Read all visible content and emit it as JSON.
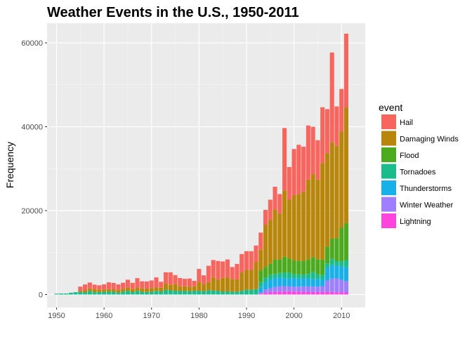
{
  "chart_data": {
    "type": "bar",
    "stacked": true,
    "title": "Weather Events in the U.S., 1950-2011",
    "xlabel": "",
    "ylabel": "Frequency",
    "xlim": [
      1948,
      2015
    ],
    "ylim": [
      -3100,
      64700
    ],
    "x_ticks": [
      1950,
      1960,
      1970,
      1980,
      1990,
      2000,
      2010
    ],
    "x_tick_labels": [
      "1950",
      "1960",
      "1970",
      "1980",
      "1990",
      "2000",
      "2010"
    ],
    "y_ticks": [
      0,
      20000,
      40000,
      60000
    ],
    "y_tick_labels": [
      "0",
      "20000",
      "40000",
      "60000"
    ],
    "grid": true,
    "legend": {
      "title": "event",
      "position": "right"
    },
    "x": [
      1950,
      1951,
      1952,
      1953,
      1954,
      1955,
      1956,
      1957,
      1958,
      1959,
      1960,
      1961,
      1962,
      1963,
      1964,
      1965,
      1966,
      1967,
      1968,
      1969,
      1970,
      1971,
      1972,
      1973,
      1974,
      1975,
      1976,
      1977,
      1978,
      1979,
      1980,
      1981,
      1982,
      1983,
      1984,
      1985,
      1986,
      1987,
      1988,
      1989,
      1990,
      1991,
      1992,
      1993,
      1994,
      1995,
      1996,
      1997,
      1998,
      1999,
      2000,
      2001,
      2002,
      2003,
      2004,
      2005,
      2006,
      2007,
      2008,
      2009,
      2010,
      2011
    ],
    "series": [
      {
        "name": "Lightning",
        "color": "#FF44DD",
        "values": [
          0,
          0,
          0,
          0,
          0,
          0,
          0,
          0,
          0,
          0,
          0,
          0,
          0,
          0,
          0,
          0,
          0,
          0,
          0,
          0,
          0,
          0,
          0,
          0,
          0,
          0,
          0,
          0,
          0,
          0,
          0,
          0,
          0,
          0,
          0,
          0,
          0,
          0,
          0,
          0,
          0,
          0,
          0,
          200,
          400,
          500,
          600,
          700,
          700,
          800,
          700,
          700,
          650,
          650,
          600,
          600,
          600,
          650,
          600,
          550,
          500,
          500
        ]
      },
      {
        "name": "Winter Weather",
        "color": "#9F7FFF",
        "values": [
          0,
          0,
          0,
          0,
          0,
          0,
          0,
          0,
          0,
          0,
          0,
          0,
          0,
          0,
          0,
          0,
          0,
          0,
          0,
          0,
          0,
          0,
          0,
          0,
          0,
          0,
          0,
          0,
          0,
          0,
          0,
          0,
          0,
          0,
          0,
          0,
          0,
          0,
          0,
          0,
          0,
          0,
          0,
          300,
          800,
          1000,
          1200,
          1300,
          1300,
          1200,
          1200,
          1200,
          1300,
          1300,
          1300,
          1300,
          1400,
          2700,
          3200,
          3300,
          3000,
          2700
        ]
      },
      {
        "name": "Thunderstorms",
        "color": "#17B0E8",
        "values": [
          0,
          0,
          0,
          0,
          0,
          0,
          0,
          0,
          0,
          0,
          0,
          0,
          0,
          0,
          0,
          0,
          0,
          0,
          0,
          0,
          0,
          0,
          0,
          0,
          0,
          0,
          0,
          0,
          0,
          0,
          0,
          0,
          0,
          0,
          0,
          0,
          0,
          0,
          0,
          0,
          0,
          0,
          0,
          1300,
          1800,
          2100,
          2200,
          2100,
          1900,
          1900,
          2000,
          1900,
          1900,
          1900,
          1800,
          1800,
          1600,
          3000,
          3200,
          3000,
          3200,
          3300
        ]
      },
      {
        "name": "Tornadoes",
        "color": "#1ABC8C",
        "values": [
          200,
          250,
          240,
          420,
          550,
          590,
          500,
          860,
          560,
          600,
          620,
          700,
          660,
          460,
          700,
          890,
          580,
          900,
          650,
          610,
          650,
          880,
          740,
          1100,
          1000,
          920,
          840,
          850,
          800,
          860,
          900,
          780,
          1050,
          930,
          900,
          680,
          760,
          650,
          700,
          860,
          1140,
          1120,
          1280,
          1160,
          1080,
          1100,
          900,
          1050,
          1300,
          1300,
          900,
          1000,
          900,
          1050,
          1700,
          1100,
          1050,
          1050,
          1500,
          1100,
          1200,
          1700
        ]
      },
      {
        "name": "Flood",
        "color": "#4CAA1E",
        "values": [
          0,
          0,
          0,
          0,
          0,
          0,
          0,
          0,
          0,
          0,
          0,
          0,
          0,
          0,
          0,
          0,
          0,
          0,
          0,
          0,
          0,
          0,
          0,
          0,
          0,
          0,
          0,
          0,
          0,
          0,
          0,
          0,
          0,
          0,
          0,
          0,
          0,
          0,
          0,
          0,
          0,
          0,
          0,
          2800,
          2500,
          2600,
          3400,
          3200,
          3800,
          3400,
          3300,
          3200,
          3300,
          3500,
          3500,
          3600,
          3700,
          4000,
          4800,
          5500,
          8000,
          8800
        ]
      },
      {
        "name": "Damaging Winds",
        "color": "#B8860B",
        "values": [
          0,
          0,
          0,
          0,
          0,
          300,
          500,
          600,
          700,
          600,
          600,
          600,
          600,
          650,
          700,
          750,
          700,
          800,
          800,
          800,
          900,
          800,
          900,
          1500,
          1300,
          1600,
          1100,
          1100,
          1100,
          1100,
          2100,
          1700,
          1900,
          3200,
          2600,
          3300,
          3400,
          3000,
          2900,
          4400,
          4700,
          4800,
          6500,
          5000,
          10000,
          10500,
          12000,
          11000,
          15800,
          14000,
          15500,
          16000,
          16500,
          19000,
          19800,
          19000,
          23000,
          22300,
          23000,
          22000,
          23000,
          27600
        ]
      },
      {
        "name": "Hail",
        "color": "#F8655E",
        "values": [
          0,
          0,
          0,
          0,
          0,
          1000,
          1400,
          1400,
          1100,
          1000,
          1200,
          1600,
          1500,
          1300,
          1400,
          1900,
          1500,
          2200,
          1700,
          1700,
          1800,
          2400,
          1400,
          2700,
          3000,
          2100,
          2000,
          1800,
          1900,
          1300,
          3100,
          2100,
          3900,
          4100,
          4500,
          3900,
          4200,
          2900,
          3700,
          4400,
          4500,
          4400,
          3900,
          4000,
          3600,
          4800,
          5400,
          4600,
          14900,
          7800,
          11100,
          11700,
          10700,
          12900,
          11300,
          9400,
          13300,
          10500,
          21400,
          9400,
          10100,
          17600
        ]
      }
    ]
  }
}
